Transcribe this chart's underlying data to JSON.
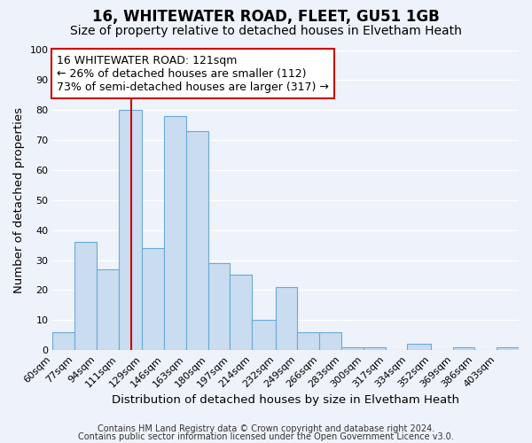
{
  "title": "16, WHITEWATER ROAD, FLEET, GU51 1GB",
  "subtitle": "Size of property relative to detached houses in Elvetham Heath",
  "xlabel": "Distribution of detached houses by size in Elvetham Heath",
  "ylabel": "Number of detached properties",
  "bin_labels": [
    "60sqm",
    "77sqm",
    "94sqm",
    "111sqm",
    "129sqm",
    "146sqm",
    "163sqm",
    "180sqm",
    "197sqm",
    "214sqm",
    "232sqm",
    "249sqm",
    "266sqm",
    "283sqm",
    "300sqm",
    "317sqm",
    "334sqm",
    "352sqm",
    "369sqm",
    "386sqm",
    "403sqm"
  ],
  "bar_values": [
    6,
    36,
    27,
    80,
    34,
    78,
    73,
    29,
    25,
    10,
    21,
    6,
    6,
    1,
    1,
    0,
    2,
    0,
    1,
    0,
    1
  ],
  "bar_color": "#c9dcf0",
  "bar_edge_color": "#6aaad5",
  "property_line_x": 121,
  "bin_edges_values": [
    60,
    77,
    94,
    111,
    129,
    146,
    163,
    180,
    197,
    214,
    232,
    249,
    266,
    283,
    300,
    317,
    334,
    352,
    369,
    386,
    403,
    420
  ],
  "annotation_line1": "16 WHITEWATER ROAD: 121sqm",
  "annotation_line2": "← 26% of detached houses are smaller (112)",
  "annotation_line3": "73% of semi-detached houses are larger (317) →",
  "annotation_box_color": "#ffffff",
  "annotation_box_edge_color": "#cc0000",
  "vline_color": "#cc0000",
  "ylim": [
    0,
    100
  ],
  "yticks": [
    0,
    10,
    20,
    30,
    40,
    50,
    60,
    70,
    80,
    90,
    100
  ],
  "background_color": "#eef2fa",
  "plot_bg_color": "#eef2fa",
  "footer_line1": "Contains HM Land Registry data © Crown copyright and database right 2024.",
  "footer_line2": "Contains public sector information licensed under the Open Government Licence v3.0.",
  "title_fontsize": 12,
  "subtitle_fontsize": 10,
  "axis_label_fontsize": 9.5,
  "tick_fontsize": 8,
  "annotation_fontsize": 9,
  "footer_fontsize": 7
}
